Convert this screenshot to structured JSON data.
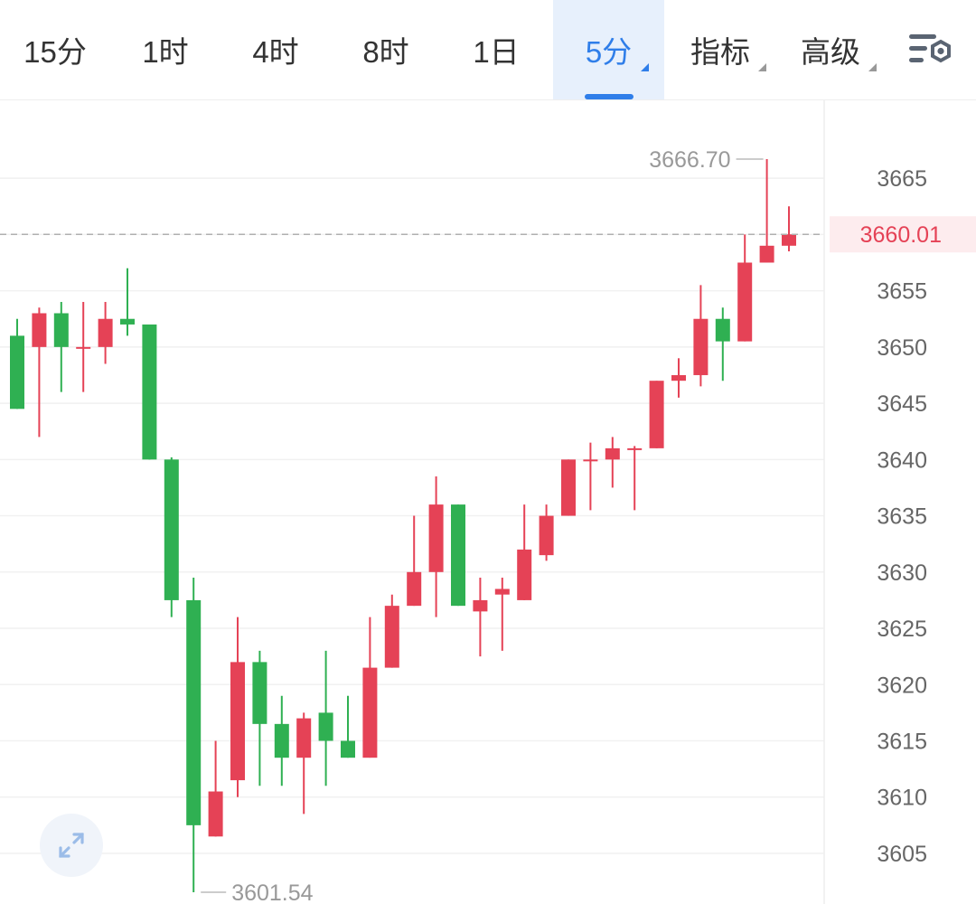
{
  "tabs": [
    {
      "label": "15分",
      "active": false,
      "dropdown": false
    },
    {
      "label": "1时",
      "active": false,
      "dropdown": false
    },
    {
      "label": "4时",
      "active": false,
      "dropdown": false
    },
    {
      "label": "8时",
      "active": false,
      "dropdown": false
    },
    {
      "label": "1日",
      "active": false,
      "dropdown": false
    },
    {
      "label": "5分",
      "active": true,
      "dropdown": true
    },
    {
      "label": "指标",
      "active": false,
      "dropdown": true
    },
    {
      "label": "高级",
      "active": false,
      "dropdown": true
    }
  ],
  "settings_icon": "chart-settings-icon",
  "expand_icon": "expand-arrows-icon",
  "colors": {
    "up": "#e54256",
    "down": "#2fb052",
    "accent": "#2f7ee9",
    "current_price": "#e54256"
  },
  "chart_data": {
    "type": "candlestick",
    "ylim": [
      3600.5,
      3672
    ],
    "yticks": [
      3665,
      3660,
      3655,
      3650,
      3645,
      3640,
      3635,
      3630,
      3625,
      3620,
      3615,
      3610,
      3605
    ],
    "ytick_labels": [
      "3665",
      "3655",
      "3650",
      "3645",
      "3640",
      "3635",
      "3630",
      "3625",
      "3620",
      "3615",
      "3610",
      "3605"
    ],
    "current_price": "3660.01",
    "max_label": "3666.70",
    "min_label": "3601.54",
    "max_value": 3666.7,
    "min_value": 3601.54,
    "candles": [
      {
        "o": 3651.0,
        "h": 3652.5,
        "l": 3644.5,
        "c": 3644.5
      },
      {
        "o": 3650.0,
        "h": 3653.5,
        "l": 3642.0,
        "c": 3653.0
      },
      {
        "o": 3653.0,
        "h": 3654.0,
        "l": 3646.0,
        "c": 3650.0
      },
      {
        "o": 3650.0,
        "h": 3654.0,
        "l": 3646.0,
        "c": 3650.0
      },
      {
        "o": 3650.0,
        "h": 3654.0,
        "l": 3648.5,
        "c": 3652.5
      },
      {
        "o": 3652.5,
        "h": 3657.0,
        "l": 3651.0,
        "c": 3652.0
      },
      {
        "o": 3652.0,
        "h": 3652.0,
        "l": 3640.0,
        "c": 3640.0
      },
      {
        "o": 3640.0,
        "h": 3640.2,
        "l": 3626.0,
        "c": 3627.5
      },
      {
        "o": 3627.5,
        "h": 3629.5,
        "l": 3601.54,
        "c": 3607.5
      },
      {
        "o": 3606.5,
        "h": 3615.0,
        "l": 3606.5,
        "c": 3610.5
      },
      {
        "o": 3611.5,
        "h": 3626.0,
        "l": 3610.0,
        "c": 3622.0
      },
      {
        "o": 3622.0,
        "h": 3623.0,
        "l": 3611.0,
        "c": 3616.5
      },
      {
        "o": 3616.5,
        "h": 3619.0,
        "l": 3611.0,
        "c": 3613.5
      },
      {
        "o": 3613.5,
        "h": 3617.5,
        "l": 3608.5,
        "c": 3617.0
      },
      {
        "o": 3617.5,
        "h": 3623.0,
        "l": 3611.0,
        "c": 3615.0
      },
      {
        "o": 3615.0,
        "h": 3619.0,
        "l": 3613.5,
        "c": 3613.5
      },
      {
        "o": 3613.5,
        "h": 3626.0,
        "l": 3613.5,
        "c": 3621.5
      },
      {
        "o": 3621.5,
        "h": 3628.0,
        "l": 3621.5,
        "c": 3627.0
      },
      {
        "o": 3627.0,
        "h": 3635.0,
        "l": 3627.0,
        "c": 3630.0
      },
      {
        "o": 3630.0,
        "h": 3638.5,
        "l": 3626.0,
        "c": 3636.0
      },
      {
        "o": 3636.0,
        "h": 3636.0,
        "l": 3627.0,
        "c": 3627.0
      },
      {
        "o": 3626.5,
        "h": 3629.5,
        "l": 3622.5,
        "c": 3627.5
      },
      {
        "o": 3628.0,
        "h": 3629.5,
        "l": 3623.0,
        "c": 3628.5
      },
      {
        "o": 3627.5,
        "h": 3636.0,
        "l": 3627.5,
        "c": 3632.0
      },
      {
        "o": 3631.5,
        "h": 3636.0,
        "l": 3631.0,
        "c": 3635.0
      },
      {
        "o": 3635.0,
        "h": 3640.0,
        "l": 3635.0,
        "c": 3640.0
      },
      {
        "o": 3640.0,
        "h": 3641.5,
        "l": 3635.5,
        "c": 3640.0
      },
      {
        "o": 3640.0,
        "h": 3642.0,
        "l": 3637.5,
        "c": 3641.0
      },
      {
        "o": 3641.0,
        "h": 3641.2,
        "l": 3635.5,
        "c": 3641.0
      },
      {
        "o": 3641.0,
        "h": 3647.0,
        "l": 3641.0,
        "c": 3647.0
      },
      {
        "o": 3647.0,
        "h": 3649.0,
        "l": 3645.5,
        "c": 3647.5
      },
      {
        "o": 3647.5,
        "h": 3655.5,
        "l": 3646.5,
        "c": 3652.5
      },
      {
        "o": 3652.5,
        "h": 3653.5,
        "l": 3647.0,
        "c": 3650.5
      },
      {
        "o": 3650.5,
        "h": 3660.0,
        "l": 3650.5,
        "c": 3657.5
      },
      {
        "o": 3657.5,
        "h": 3666.7,
        "l": 3657.5,
        "c": 3659.0
      },
      {
        "o": 3659.0,
        "h": 3662.5,
        "l": 3658.5,
        "c": 3660.01
      }
    ]
  }
}
